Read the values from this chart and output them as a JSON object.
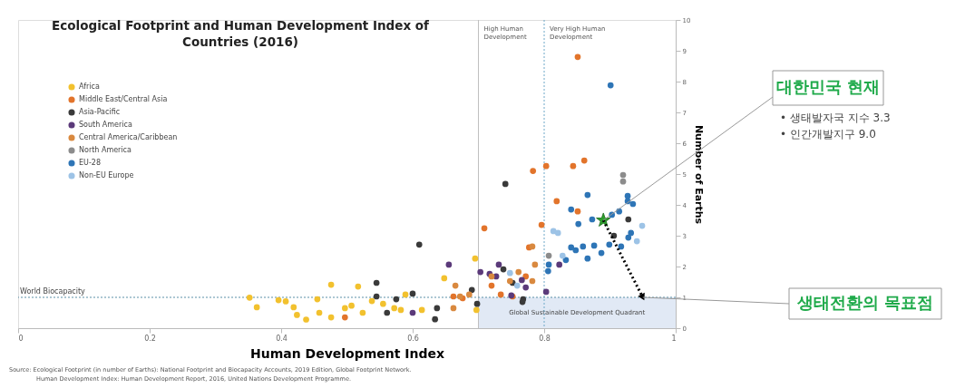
{
  "chart_data": {
    "type": "scatter",
    "title": "Ecological Footprint and Human Development Index of Countries (2016)",
    "xlabel": "Human Development Index",
    "ylabel": "Number of Earths",
    "xlim": [
      0,
      1
    ],
    "xticks": [
      0,
      0.2,
      0.4,
      0.6,
      0.8,
      1
    ],
    "ylim": [
      0,
      10
    ],
    "yticks": [
      0,
      1,
      2,
      3,
      4,
      5,
      6,
      7,
      8,
      9,
      10
    ],
    "grid": false,
    "legend": "top left",
    "marker": "circle",
    "series": [
      {
        "name": "Africa",
        "color": "#f2c12e",
        "x": [
          0.352,
          0.363,
          0.396,
          0.407,
          0.419,
          0.424,
          0.438,
          0.455,
          0.458,
          0.476,
          0.476,
          0.497,
          0.507,
          0.517,
          0.524,
          0.538,
          0.555,
          0.572,
          0.582,
          0.589,
          0.614,
          0.697,
          0.648,
          0.695
        ],
        "values": [
          0.99,
          0.68,
          0.91,
          0.87,
          0.68,
          0.43,
          0.28,
          0.94,
          0.5,
          1.41,
          0.35,
          0.65,
          0.73,
          1.35,
          0.5,
          0.88,
          0.79,
          0.65,
          0.59,
          1.09,
          0.59,
          0.59,
          1.62,
          2.26
        ]
      },
      {
        "name": "Middle East/Central Asia",
        "color": "#e2742b",
        "x": [
          0.851,
          0.709,
          0.783,
          0.803,
          0.844,
          0.861,
          0.819,
          0.851,
          0.796,
          0.777,
          0.662,
          0.676,
          0.72,
          0.734,
          0.772,
          0.752,
          0.497
        ],
        "values": [
          8.8,
          3.24,
          5.1,
          5.26,
          5.26,
          5.44,
          4.12,
          3.79,
          3.35,
          2.62,
          1.03,
          0.97,
          1.38,
          1.09,
          1.68,
          1.03,
          0.35
        ]
      },
      {
        "name": "Asia-Pacific",
        "color": "#3a3a3a",
        "x": [
          0.741,
          0.61,
          0.545,
          0.545,
          0.575,
          0.6,
          0.561,
          0.634,
          0.637,
          0.698,
          0.738,
          0.752,
          0.768,
          0.906,
          0.928,
          0.69,
          0.767
        ],
        "values": [
          4.68,
          2.71,
          1.47,
          1.03,
          0.94,
          1.12,
          0.5,
          0.29,
          0.65,
          0.79,
          1.91,
          1.47,
          0.94,
          3.0,
          3.53,
          1.24,
          0.85
        ]
      },
      {
        "name": "South America",
        "color": "#5b3a7a",
        "x": [
          0.655,
          0.727,
          0.717,
          0.75,
          0.6,
          0.803,
          0.823,
          0.772,
          0.703,
          0.766,
          0.731
        ],
        "values": [
          2.06,
          1.68,
          1.76,
          1.06,
          0.5,
          1.18,
          2.06,
          1.32,
          1.82,
          1.56,
          2.06
        ]
      },
      {
        "name": "Central America/Caribbean",
        "color": "#d9893f",
        "x": [
          0.662,
          0.672,
          0.686,
          0.72,
          0.748,
          0.782,
          0.782,
          0.786,
          0.761,
          0.665
        ],
        "values": [
          0.65,
          1.03,
          1.09,
          1.68,
          1.53,
          1.53,
          2.65,
          2.06,
          1.82,
          1.38
        ]
      },
      {
        "name": "North America",
        "color": "#8c8c8c",
        "x": [
          0.92,
          0.92,
          0.807
        ],
        "values": [
          4.97,
          4.76,
          2.35
        ]
      },
      {
        "name": "EU-28",
        "color": "#2e75b6",
        "x": [
          0.901,
          0.866,
          0.927,
          0.841,
          0.852,
          0.873,
          0.903,
          0.914,
          0.927,
          0.935,
          0.841,
          0.848,
          0.859,
          0.876,
          0.887,
          0.866,
          0.899,
          0.917,
          0.928,
          0.932,
          0.807,
          0.833,
          0.806
        ],
        "values": [
          7.88,
          4.32,
          4.29,
          3.85,
          3.38,
          3.53,
          3.68,
          3.79,
          4.12,
          4.03,
          2.62,
          2.53,
          2.65,
          2.68,
          2.44,
          2.26,
          2.71,
          2.65,
          2.94,
          3.09,
          2.06,
          2.21,
          1.85
        ]
      },
      {
        "name": "Non-EU Europe",
        "color": "#9dc3e6",
        "x": [
          0.949,
          0.814,
          0.941,
          0.821,
          0.748,
          0.828,
          0.759
        ],
        "values": [
          3.32,
          3.15,
          2.82,
          3.09,
          1.79,
          2.35,
          1.38
        ]
      },
      {
        "color": "#2ca02c",
        "marker": "star",
        "x": [
          0.89
        ],
        "values": [
          3.5
        ]
      },
      {
        "type": "line",
        "color": "#000000",
        "line_style": "dotted",
        "marker": "triangle",
        "x": [
          0.89,
          0.95
        ],
        "values": [
          3.5,
          1
        ]
      }
    ],
    "ref_lines": [
      {
        "axis": "x",
        "value": 0.7,
        "label": "High Human Development",
        "color": "#bfbfbf",
        "line_style": "solid"
      },
      {
        "axis": "x",
        "value": 0.8,
        "label": "Very High Human Development",
        "color": "#6fa8c8",
        "line_style": "dotted"
      },
      {
        "axis": "y",
        "value": 1,
        "label": "World Biocapacity",
        "color": "#5b8fa8",
        "line_style": "dotted"
      }
    ],
    "bands": [
      {
        "axis": "x",
        "from": 0.7,
        "to": 1,
        "label": "Global Sustainable Development Quadrant",
        "color": "#dae3f3"
      }
    ],
    "annotations": [
      {
        "text": "대한민국 현재",
        "x": 0.89,
        "y": 3.5
      },
      "• 생태발자국 지수 3.3",
      "• 인간개발지구 9.0",
      {
        "text": "생태전환의 목표점",
        "x": 0.95,
        "y": 1
      },
      "Source: Ecological Footprint (in number of Earths): National Footprint and Biocapacity Accounts, 2019 Edition, Global Footprint Network.",
      "Human Development Index: Human Development Report, 2016, United Nations Development Programme."
    ]
  }
}
